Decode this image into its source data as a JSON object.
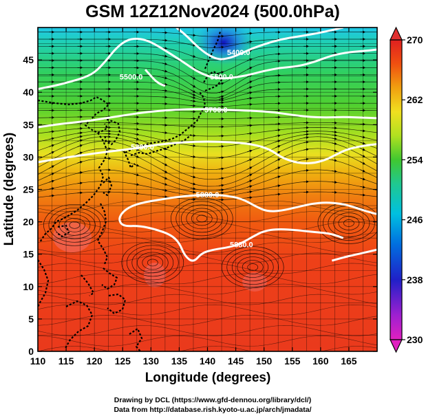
{
  "title": "GSM 12Z12Nov2024 (500.0hPa)",
  "xlabel": "Longitude (degrees)",
  "ylabel": "Latitude (degrees)",
  "credits": [
    "Drawing by DCL (https://www.gfd-dennou.org/library/dcl/)",
    "Data from http://database.rish.kyoto-u.ac.jp/arch/jmadata/"
  ],
  "chart_data": {
    "type": "heatmap",
    "variable": "temperature shading with geopotential height contours and wind streamlines",
    "xlim": [
      110,
      170
    ],
    "ylim": [
      0,
      50
    ],
    "x_ticks": [
      110,
      115,
      120,
      125,
      130,
      135,
      140,
      145,
      150,
      155,
      160,
      165
    ],
    "y_ticks": [
      0,
      5,
      10,
      15,
      20,
      25,
      30,
      35,
      40,
      45
    ],
    "colorbar": {
      "min": 230,
      "max": 270,
      "ticks": [
        230,
        238,
        246,
        254,
        262,
        270
      ],
      "colors": [
        "#e020c0",
        "#3030d0",
        "#00a0f0",
        "#30d060",
        "#f0e020",
        "#f06010",
        "#e02020"
      ]
    },
    "contours": [
      {
        "label": "5400.0",
        "level": 5400,
        "points": [
          [
            134.5,
            50
          ],
          [
            136,
            49
          ],
          [
            138,
            47.2
          ],
          [
            140,
            45.8
          ],
          [
            142,
            45
          ],
          [
            144,
            45.3
          ],
          [
            146,
            46
          ],
          [
            148,
            46.8
          ],
          [
            150,
            47.4
          ],
          [
            153,
            48.2
          ],
          [
            156,
            48.6
          ],
          [
            160,
            49.2
          ],
          [
            163,
            49.8
          ],
          [
            164,
            50
          ]
        ]
      },
      {
        "label": "5500.0",
        "level": 5500,
        "points": [
          [
            110,
            40.5
          ],
          [
            113,
            41
          ],
          [
            116,
            41.7
          ],
          [
            118,
            42.2
          ],
          [
            120,
            43
          ],
          [
            122,
            44.8
          ],
          [
            124,
            47
          ],
          [
            126,
            48.2
          ],
          [
            128,
            48.3
          ],
          [
            130,
            47.8
          ],
          [
            133,
            46.2
          ],
          [
            136,
            44.5
          ],
          [
            138,
            43.3
          ],
          [
            140,
            42.5
          ],
          [
            142,
            42.1
          ],
          [
            144,
            42.2
          ],
          [
            147,
            42.6
          ],
          [
            150,
            43.3
          ],
          [
            153,
            43.8
          ],
          [
            156,
            44
          ],
          [
            159,
            44.7
          ],
          [
            162,
            45.7
          ],
          [
            165,
            46.2
          ],
          [
            168,
            46.4
          ],
          [
            170,
            46.6
          ]
        ]
      },
      {
        "label": "5500.0",
        "level": 5500,
        "points": [
          [
            129,
            43.5
          ],
          [
            130.5,
            42
          ],
          [
            131.5,
            41.3
          ],
          [
            132.5,
            41
          ]
        ]
      },
      {
        "label": "5700.0",
        "level": 5700,
        "points": [
          [
            110,
            34.6
          ],
          [
            113,
            35
          ],
          [
            116,
            35.3
          ],
          [
            119,
            35.6
          ],
          [
            122,
            36
          ],
          [
            125,
            36.4
          ],
          [
            128,
            36.8
          ],
          [
            131,
            37.1
          ],
          [
            134,
            37.3
          ],
          [
            137,
            37.4
          ],
          [
            140,
            37.4
          ],
          [
            143,
            37.3
          ],
          [
            146,
            37.2
          ],
          [
            149,
            37.1
          ],
          [
            152,
            36.9
          ],
          [
            155,
            36.5
          ],
          [
            158,
            36.2
          ],
          [
            161,
            36.1
          ],
          [
            164,
            36.2
          ],
          [
            167,
            36.1
          ],
          [
            170,
            36
          ]
        ]
      },
      {
        "label": "5800.0",
        "level": 5800,
        "points": [
          [
            110,
            29.2
          ],
          [
            114,
            29.8
          ],
          [
            118,
            30.3
          ],
          [
            122,
            30.8
          ],
          [
            126,
            31.2
          ],
          [
            129,
            31.6
          ],
          [
            132,
            32
          ],
          [
            136,
            32.3
          ],
          [
            140,
            32.4
          ],
          [
            144,
            32.3
          ],
          [
            148,
            32
          ],
          [
            151,
            31.2
          ],
          [
            153,
            30
          ],
          [
            155,
            29.3
          ],
          [
            157,
            29
          ],
          [
            159,
            29.1
          ],
          [
            161,
            29.6
          ],
          [
            163,
            30.5
          ],
          [
            165,
            31.3
          ],
          [
            168,
            31.8
          ],
          [
            170,
            32
          ]
        ]
      },
      {
        "label": "5880.0",
        "level": 5880,
        "points": [
          [
            164,
            17.5
          ],
          [
            162,
            18.2
          ],
          [
            159,
            18.4
          ],
          [
            156,
            18.7
          ],
          [
            152.5,
            18.9
          ],
          [
            150,
            18.6
          ],
          [
            148,
            17.7
          ],
          [
            146,
            16.7
          ],
          [
            144,
            16.1
          ],
          [
            141,
            15.7
          ],
          [
            139,
            15.2
          ],
          [
            137.5,
            13.7
          ],
          [
            136,
            14.7
          ],
          [
            135,
            16.8
          ],
          [
            133.5,
            18
          ],
          [
            131,
            18.8
          ],
          [
            128,
            19.4
          ],
          [
            125,
            19.3
          ],
          [
            124.2,
            20.5
          ],
          [
            125.5,
            22
          ],
          [
            128,
            22.9
          ],
          [
            132,
            23.5
          ],
          [
            136,
            24
          ],
          [
            140,
            24.2
          ],
          [
            143,
            24.1
          ],
          [
            146,
            23.6
          ],
          [
            148.5,
            22.4
          ],
          [
            150.5,
            21.6
          ],
          [
            153,
            21.7
          ],
          [
            156,
            22.3
          ],
          [
            158.5,
            22.8
          ],
          [
            161,
            23
          ],
          [
            163.5,
            22.8
          ],
          [
            165.5,
            22.4
          ],
          [
            167.5,
            21.8
          ],
          [
            169,
            21.4
          ],
          [
            170,
            21.2
          ]
        ]
      },
      {
        "label": "5880.0",
        "level": 5880,
        "points": [
          [
            170,
            15.7
          ],
          [
            168,
            15.3
          ],
          [
            166,
            14.9
          ],
          [
            164,
            14.5
          ],
          [
            162,
            14
          ]
        ]
      }
    ],
    "circulation_centers": [
      {
        "type": "anticyclonic",
        "x": 139,
        "y": 20.5
      },
      {
        "type": "anticyclonic",
        "x": 165,
        "y": 19.8
      },
      {
        "type": "cyclonic",
        "x": 116.5,
        "y": 19.5
      },
      {
        "type": "cyclonic",
        "x": 130.3,
        "y": 13.7
      },
      {
        "type": "cyclonic",
        "x": 148,
        "y": 13.0
      }
    ]
  }
}
